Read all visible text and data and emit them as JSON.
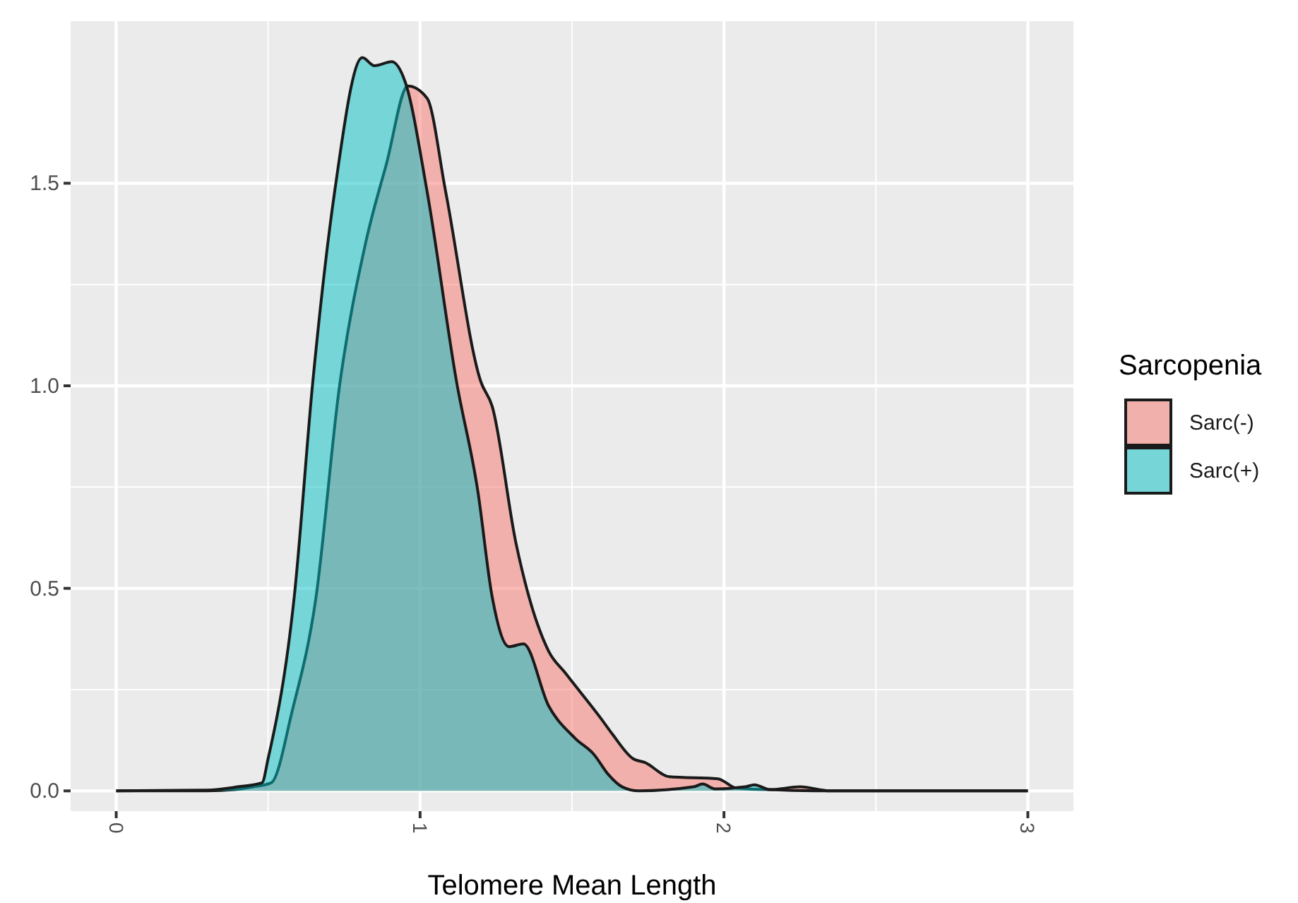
{
  "chart_data": {
    "type": "area",
    "xlabel": "Telomere Mean Length",
    "legend_title": "Sarcopenia",
    "xlim": [
      -0.15,
      3.15
    ],
    "ylim": [
      -0.05,
      1.9
    ],
    "xticks": [
      0,
      1,
      2,
      3
    ],
    "yticks": [
      {
        "value": 0,
        "label": "0.0"
      },
      {
        "value": 0.5,
        "label": "0.5"
      },
      {
        "value": 1,
        "label": "1.0"
      },
      {
        "value": 1.5,
        "label": "1.5"
      }
    ],
    "grid": true,
    "legend": "right",
    "series": [
      {
        "name": "Sarc(-)",
        "color": "#f8766d",
        "x": [
          0,
          0.3,
          0.39,
          0.45,
          0.51,
          0.58,
          0.656,
          0.735,
          0.82,
          0.89,
          0.96,
          1.023,
          1.084,
          1.2,
          1.237,
          1.316,
          1.423,
          1.479,
          1.6,
          1.633,
          1.7,
          1.74,
          1.82,
          1.98,
          2.04,
          2.15,
          2.25,
          2.35,
          3
        ],
        "values": [
          0,
          0,
          0.003,
          0.01,
          0.02,
          0.2,
          0.47,
          1.0,
          1.35,
          1.55,
          1.74,
          1.71,
          1.48,
          1.01,
          0.95,
          0.61,
          0.345,
          0.29,
          0.174,
          0.14,
          0.08,
          0.07,
          0.035,
          0.03,
          0.007,
          0.003,
          0.01,
          0,
          0
        ]
      },
      {
        "name": "Sarc(+)",
        "color": "#00bfc4",
        "x": [
          0,
          0.3,
          0.4,
          0.48,
          0.5,
          0.586,
          0.647,
          0.719,
          0.81,
          0.85,
          0.907,
          0.951,
          1.023,
          1.12,
          1.19,
          1.237,
          1.293,
          1.34,
          1.423,
          1.51,
          1.572,
          1.62,
          1.665,
          1.72,
          1.9,
          1.93,
          1.97,
          2.07,
          2.1,
          2.15,
          2.3,
          3
        ],
        "values": [
          0,
          0.002,
          0.01,
          0.02,
          0.08,
          0.48,
          1.01,
          1.48,
          1.81,
          1.79,
          1.8,
          1.75,
          1.48,
          1.01,
          0.74,
          0.48,
          0.356,
          0.363,
          0.21,
          0.13,
          0.09,
          0.04,
          0.01,
          0,
          0.01,
          0.017,
          0.005,
          0.01,
          0.015,
          0.003,
          0,
          0
        ]
      }
    ]
  }
}
